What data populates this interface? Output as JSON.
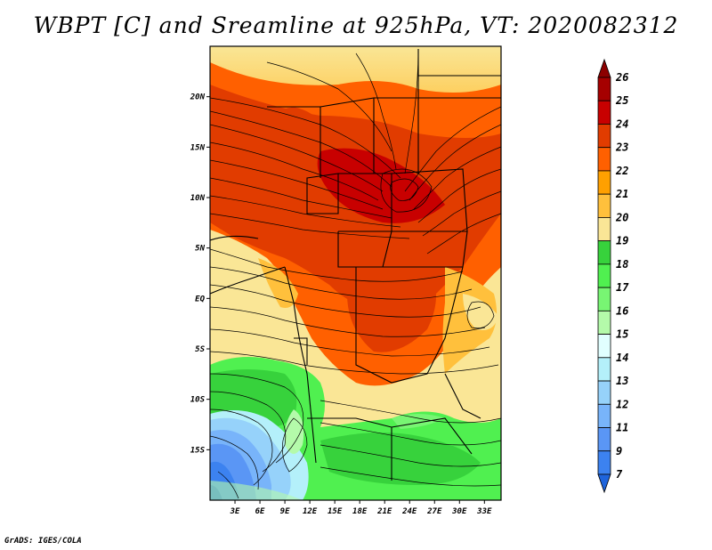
{
  "title": "WBPT [C] and Sreamline at 925hPa, VT: 2020082312",
  "credit": "GrADS: IGES/COLA",
  "map": {
    "lon_range": [
      0,
      35
    ],
    "lat_range": [
      -20,
      25
    ],
    "x_ticks": [
      {
        "lon": 3,
        "label": "3E"
      },
      {
        "lon": 6,
        "label": "6E"
      },
      {
        "lon": 9,
        "label": "9E"
      },
      {
        "lon": 12,
        "label": "12E"
      },
      {
        "lon": 15,
        "label": "15E"
      },
      {
        "lon": 18,
        "label": "18E"
      },
      {
        "lon": 21,
        "label": "21E"
      },
      {
        "lon": 24,
        "label": "24E"
      },
      {
        "lon": 27,
        "label": "27E"
      },
      {
        "lon": 30,
        "label": "30E"
      },
      {
        "lon": 33,
        "label": "33E"
      }
    ],
    "y_ticks": [
      {
        "lat": 20,
        "label": "20N"
      },
      {
        "lat": 15,
        "label": "15N"
      },
      {
        "lat": 10,
        "label": "10N"
      },
      {
        "lat": 5,
        "label": "5N"
      },
      {
        "lat": 0,
        "label": "EQ"
      },
      {
        "lat": -5,
        "label": "5S"
      },
      {
        "lat": -10,
        "label": "10S"
      },
      {
        "lat": -15,
        "label": "15S"
      }
    ]
  },
  "colorbar": {
    "levels": [
      "7",
      "9",
      "11",
      "12",
      "13",
      "14",
      "15",
      "16",
      "17",
      "18",
      "19",
      "20",
      "21",
      "22",
      "23",
      "24",
      "25",
      "26"
    ],
    "colors": [
      "#1e64dc",
      "#3c82f0",
      "#5a96f5",
      "#78b4fa",
      "#96d2fa",
      "#b4f0fa",
      "#e1ffff",
      "#b4faaa",
      "#78f573",
      "#50f050",
      "#37d23c",
      "#fae696",
      "#ffc03c",
      "#ffa000",
      "#ff6000",
      "#e13c00",
      "#c80000",
      "#a50000",
      "#8c0000"
    ]
  }
}
